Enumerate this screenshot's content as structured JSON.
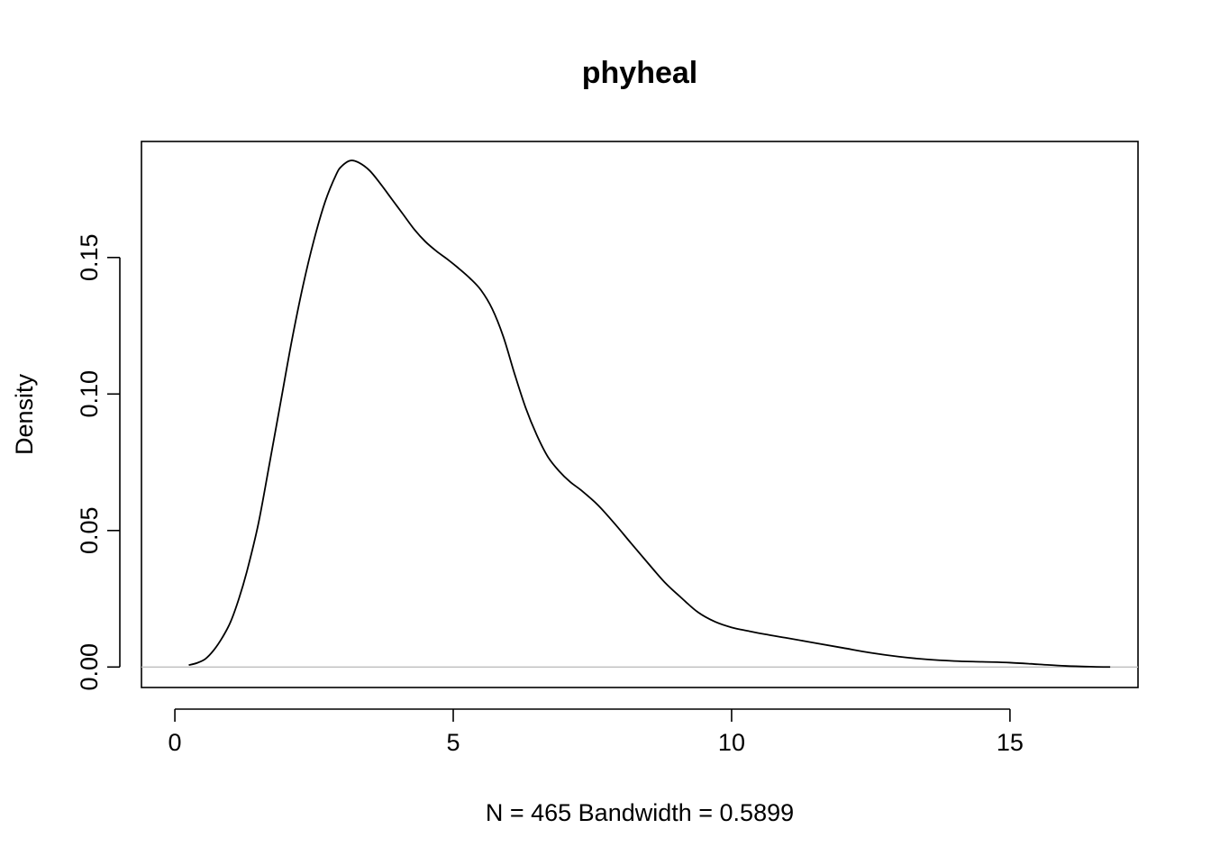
{
  "chart_data": {
    "type": "line",
    "title": "phyheal",
    "xlabel": "N = 465   Bandwidth = 0.5899",
    "ylabel": "Density",
    "xlim": [
      -0.6,
      17.3
    ],
    "ylim": [
      -0.0075,
      0.1925
    ],
    "x_ticks": [
      "0",
      "5",
      "10",
      "15"
    ],
    "x_tick_values": [
      0,
      5,
      10,
      15
    ],
    "y_ticks": [
      "0.00",
      "0.05",
      "0.10",
      "0.15"
    ],
    "y_tick_values": [
      0,
      0.05,
      0.1,
      0.15
    ],
    "grid": false,
    "zero_line": true,
    "colors": {
      "line": "#000000",
      "zero_line": "#bebebe",
      "frame": "#000000"
    },
    "series": [
      {
        "x": [
          0.25,
          0.4,
          0.55,
          0.7,
          0.85,
          1.0,
          1.15,
          1.3,
          1.5,
          1.7,
          1.9,
          2.1,
          2.3,
          2.5,
          2.7,
          2.9,
          3.0,
          3.15,
          3.3,
          3.5,
          3.7,
          3.9,
          4.1,
          4.3,
          4.5,
          4.7,
          4.9,
          5.1,
          5.3,
          5.5,
          5.7,
          5.9,
          6.1,
          6.3,
          6.5,
          6.7,
          6.9,
          7.1,
          7.3,
          7.6,
          7.9,
          8.2,
          8.5,
          8.8,
          9.1,
          9.4,
          9.7,
          10.0,
          10.3,
          10.6,
          11.0,
          11.5,
          12.0,
          12.5,
          13.0,
          13.5,
          14.0,
          14.5,
          15.0,
          15.5,
          16.0,
          16.5,
          16.8
        ],
        "y": [
          0.0007,
          0.0015,
          0.003,
          0.0062,
          0.0107,
          0.0165,
          0.025,
          0.0355,
          0.0525,
          0.0745,
          0.097,
          0.1195,
          0.1395,
          0.1565,
          0.1705,
          0.1805,
          0.1835,
          0.1855,
          0.1848,
          0.1818,
          0.1768,
          0.1713,
          0.1658,
          0.1603,
          0.1558,
          0.1523,
          0.1493,
          0.146,
          0.1424,
          0.138,
          0.1312,
          0.121,
          0.1075,
          0.095,
          0.085,
          0.077,
          0.0718,
          0.0678,
          0.0647,
          0.0593,
          0.0525,
          0.0452,
          0.038,
          0.031,
          0.0253,
          0.02,
          0.0166,
          0.0145,
          0.0132,
          0.012,
          0.0106,
          0.0088,
          0.007,
          0.0052,
          0.0038,
          0.0028,
          0.0022,
          0.0019,
          0.0016,
          0.001,
          0.0004,
          0.0001,
          0.0
        ]
      }
    ]
  }
}
